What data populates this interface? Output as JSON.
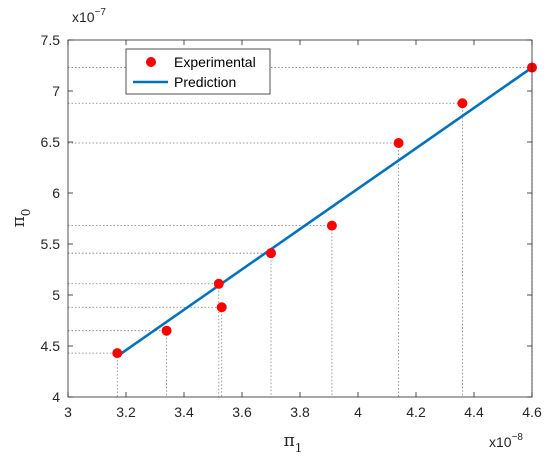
{
  "chart_data": {
    "type": "scatter",
    "xlabel": "π",
    "xlabel_sub": "1",
    "ylabel": "π",
    "ylabel_sub": "0",
    "x_exponent_label": "x10",
    "x_exponent_power": "−8",
    "y_exponent_label": "x10",
    "y_exponent_power": "−7",
    "xlim": [
      3,
      4.6
    ],
    "ylim": [
      4,
      7.5
    ],
    "x_ticks": [
      "3",
      "3.2",
      "3.4",
      "3.6",
      "3.8",
      "4",
      "4.2",
      "4.4",
      "4.6"
    ],
    "y_ticks": [
      "4",
      "4.5",
      "5",
      "5.5",
      "6",
      "6.5",
      "7",
      "7.5"
    ],
    "grid": false,
    "legend_position": "top-left",
    "series": [
      {
        "name": "Experimental",
        "kind": "points",
        "color": "#ff0000",
        "x": [
          3.17,
          3.34,
          3.52,
          3.53,
          3.7,
          3.91,
          4.14,
          4.36,
          4.6
        ],
        "y": [
          4.43,
          4.65,
          5.11,
          4.88,
          5.41,
          5.68,
          6.49,
          6.88,
          7.23
        ]
      },
      {
        "name": "Prediction",
        "kind": "line",
        "color": "#0072bd",
        "x": [
          3.17,
          4.6
        ],
        "y": [
          4.4,
          7.23
        ]
      }
    ]
  }
}
